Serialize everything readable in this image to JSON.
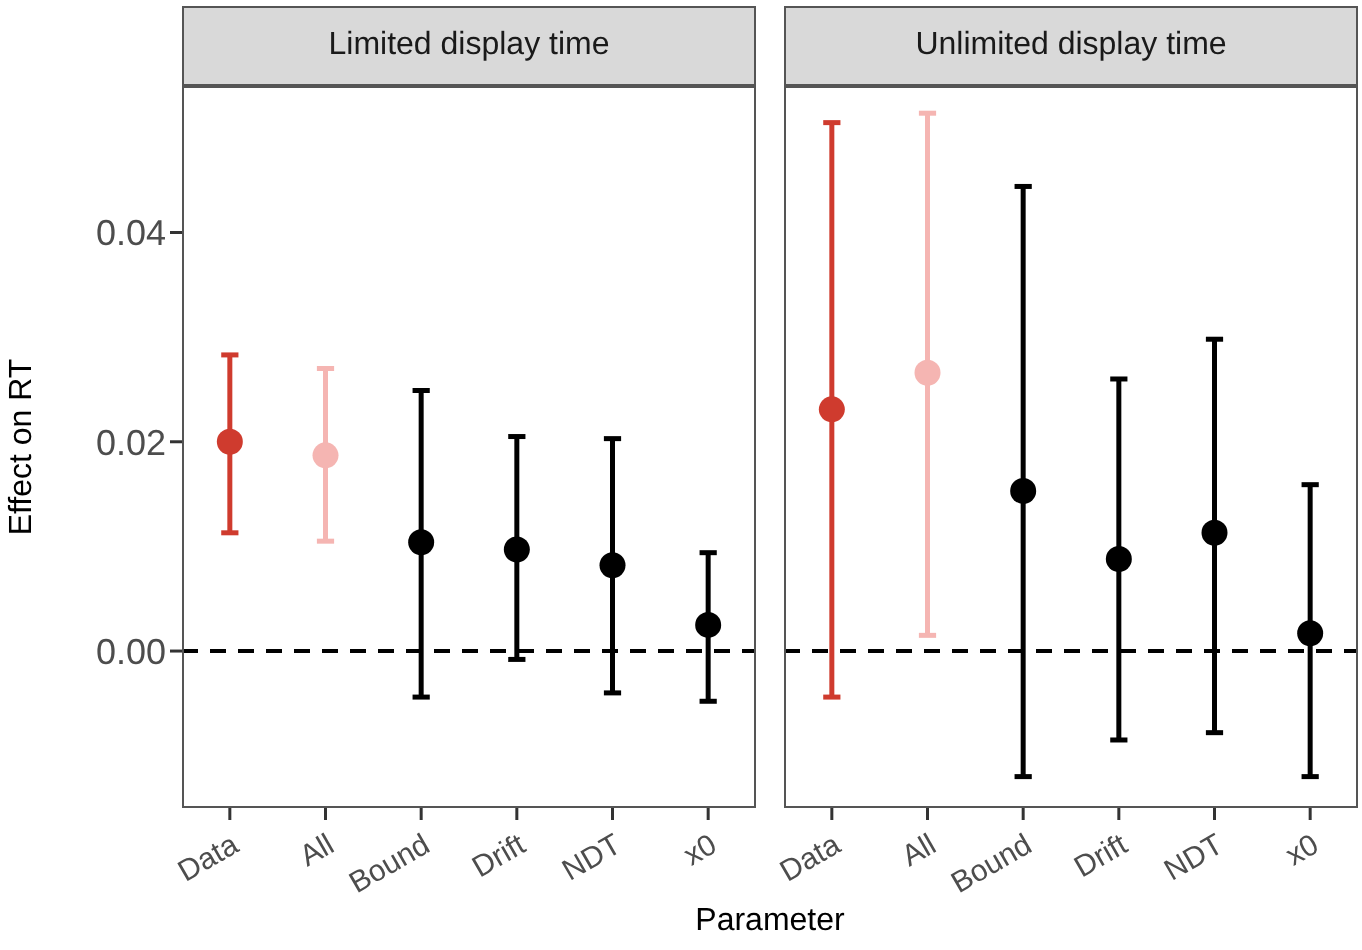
{
  "chart_data": [
    {
      "type": "scatter",
      "title": "Limited display time",
      "xlabel": "Parameter",
      "ylabel": "Effect on RT",
      "categories": [
        "Data",
        "All",
        "Bound",
        "Drift",
        "NDT",
        "x0"
      ],
      "series": [
        {
          "values": [
            0.02,
            0.0187,
            0.0104,
            0.0097,
            0.0082,
            0.0025
          ],
          "colors": [
            "#cf3b2e",
            "#f5b5b2",
            "#000000",
            "#000000",
            "#000000",
            "#000000"
          ],
          "errors": [
            [
              0.0113,
              0.0283
            ],
            [
              0.0105,
              0.027
            ],
            [
              -0.0044,
              0.0249
            ],
            [
              -0.0008,
              0.0205
            ],
            [
              -0.004,
              0.0203
            ],
            [
              -0.0048,
              0.0094
            ]
          ]
        }
      ],
      "ylim": [
        -0.015,
        0.054
      ],
      "yticks": [
        {
          "value": 0,
          "label": "0.00"
        },
        {
          "value": 0.02,
          "label": "0.02"
        },
        {
          "value": 0.04,
          "label": "0.04"
        }
      ],
      "ref_lines": [
        {
          "axis": "y",
          "value": 0,
          "line_style": "dashed",
          "color": "#000000"
        }
      ],
      "marker": "circle",
      "grid": false,
      "legend": false
    },
    {
      "type": "scatter",
      "title": "Unlimited display time",
      "categories": [
        "Data",
        "All",
        "Bound",
        "Drift",
        "NDT",
        "x0"
      ],
      "series": [
        {
          "values": [
            0.0231,
            0.0266,
            0.0153,
            0.0088,
            0.0113,
            0.0017
          ],
          "colors": [
            "#cf3b2e",
            "#f5b5b2",
            "#000000",
            "#000000",
            "#000000",
            "#000000"
          ],
          "errors": [
            [
              -0.0044,
              0.0505
            ],
            [
              0.0015,
              0.0514
            ],
            [
              -0.012,
              0.0444
            ],
            [
              -0.0085,
              0.026
            ],
            [
              -0.0078,
              0.0298
            ],
            [
              -0.012,
              0.0159
            ]
          ]
        }
      ],
      "ylim": [
        -0.015,
        0.054
      ],
      "ref_lines": [
        {
          "axis": "y",
          "value": 0,
          "line_style": "dashed",
          "color": "#000000"
        }
      ],
      "marker": "circle",
      "grid": false,
      "legend": false,
      "tick_labels": "x"
    }
  ]
}
